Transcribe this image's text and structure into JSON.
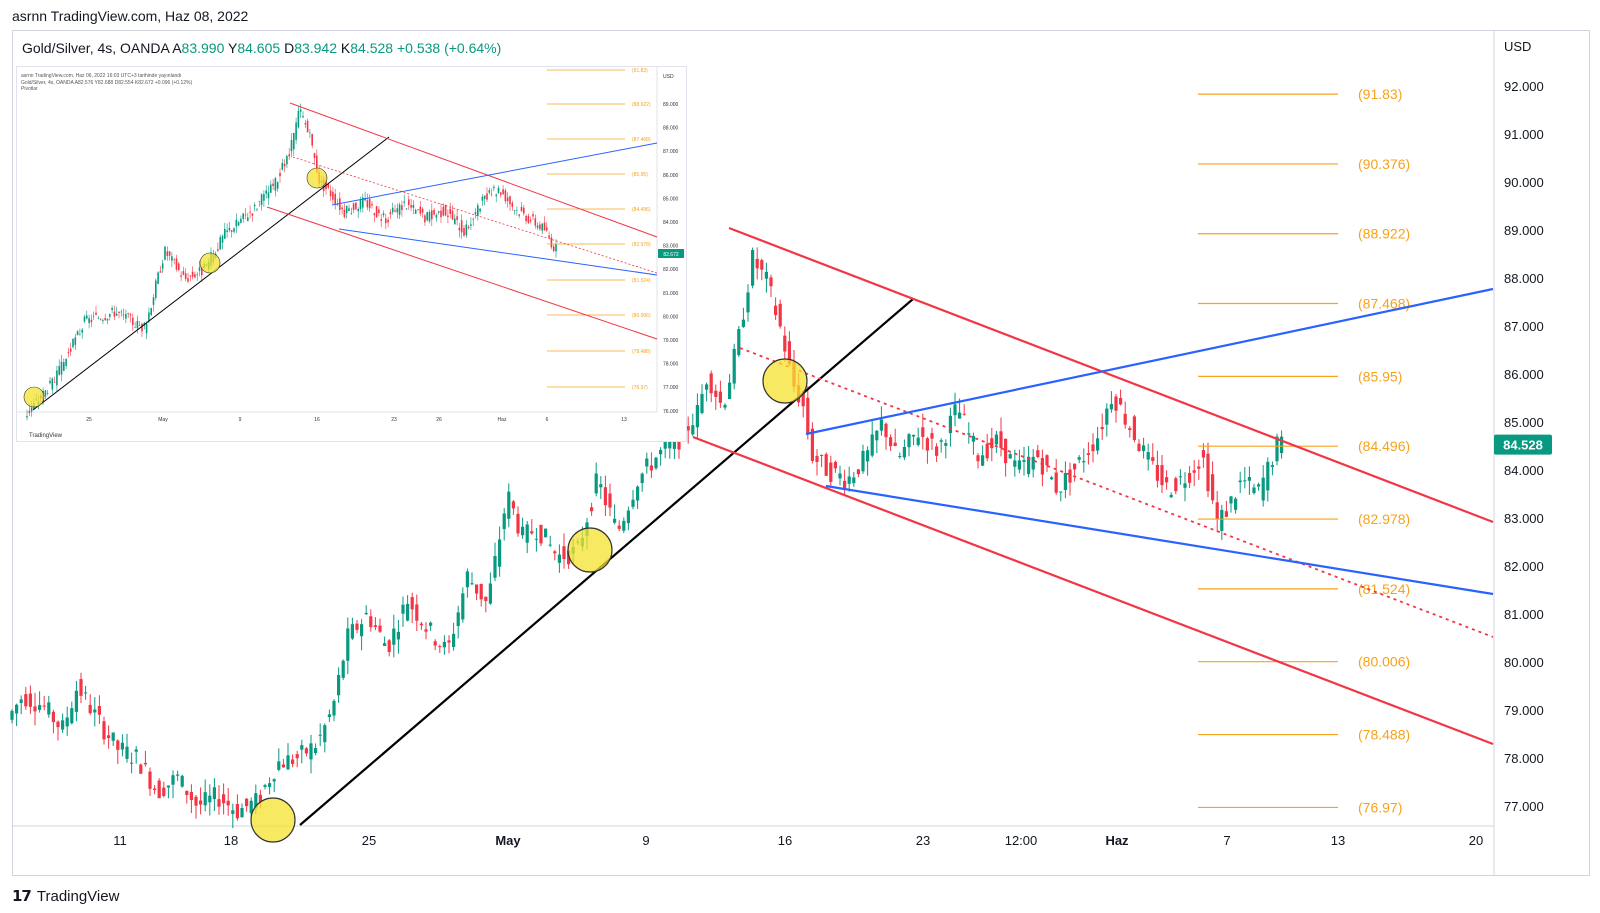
{
  "topline": "asrnn TradingView.com, Haz 08, 2022",
  "header": {
    "symbol": "Gold/Silver, 4s, OANDA",
    "o_label": "A",
    "o_val": "83.990",
    "h_label": "Y",
    "h_val": "84.605",
    "l_label": "D",
    "l_val": "83.942",
    "c_label": "K",
    "c_val": "84.528",
    "change": "+0.538 (+0.64%)"
  },
  "currency": "USD",
  "price_tag": "84.528",
  "footer": {
    "logo": "𝟭𝟳",
    "brand": "TradingView"
  },
  "colors": {
    "up": "#089981",
    "down": "#f23645",
    "fib": "#f7a21b",
    "channel": "#f23645",
    "wedge": "#2962ff",
    "trend": "#000000",
    "highlight": "#f5e12d",
    "price_tag": "#089981"
  },
  "chart_data": [
    {
      "type": "line",
      "title": "Gold/Silver, 4s, OANDA",
      "ylabel": "USD",
      "ylim": [
        76.5,
        92.8
      ],
      "y_ticks": [
        "92.000",
        "91.000",
        "90.000",
        "89.000",
        "88.000",
        "87.000",
        "86.000",
        "85.000",
        "84.000",
        "83.000",
        "82.000",
        "81.000",
        "80.000",
        "79.000",
        "78.000",
        "77.000"
      ],
      "x_ticks": [
        "11",
        "18",
        "25",
        "May",
        "9",
        "16",
        "23",
        "12:00",
        "Haz",
        "7",
        "13",
        "20"
      ],
      "fib_levels": [
        {
          "label": "(91.83)",
          "value": 91.83
        },
        {
          "label": "(90.376)",
          "value": 90.376
        },
        {
          "label": "(88.922)",
          "value": 88.922
        },
        {
          "label": "(87.468)",
          "value": 87.468
        },
        {
          "label": "(85.95)",
          "value": 85.95
        },
        {
          "label": "(84.496)",
          "value": 84.496
        },
        {
          "label": "(82.978)",
          "value": 82.978
        },
        {
          "label": "(81.524)",
          "value": 81.524
        },
        {
          "label": "(80.006)",
          "value": 80.006
        },
        {
          "label": "(78.488)",
          "value": 78.488
        },
        {
          "label": "(76.97)",
          "value": 76.97
        }
      ],
      "price_path": [
        [
          0,
          78.8
        ],
        [
          15,
          79.3
        ],
        [
          35,
          79.1
        ],
        [
          55,
          78.6
        ],
        [
          70,
          79.5
        ],
        [
          90,
          78.8
        ],
        [
          110,
          78.2
        ],
        [
          130,
          78.0
        ],
        [
          150,
          77.3
        ],
        [
          170,
          77.6
        ],
        [
          190,
          77.0
        ],
        [
          210,
          77.2
        ],
        [
          230,
          76.9
        ],
        [
          250,
          77.1
        ],
        [
          270,
          77.9
        ],
        [
          290,
          78.0
        ],
        [
          310,
          78.3
        ],
        [
          325,
          79.0
        ],
        [
          340,
          80.5
        ],
        [
          360,
          81.0
        ],
        [
          380,
          80.3
        ],
        [
          400,
          81.3
        ],
        [
          420,
          80.7
        ],
        [
          440,
          80.2
        ],
        [
          460,
          81.8
        ],
        [
          480,
          81.2
        ],
        [
          500,
          83.5
        ],
        [
          515,
          82.6
        ],
        [
          530,
          82.8
        ],
        [
          550,
          82.2
        ],
        [
          570,
          82.3
        ],
        [
          590,
          83.8
        ],
        [
          610,
          82.7
        ],
        [
          630,
          83.8
        ],
        [
          650,
          84.3
        ],
        [
          670,
          84.6
        ],
        [
          690,
          85.2
        ],
        [
          700,
          86.0
        ],
        [
          715,
          85.3
        ],
        [
          730,
          86.6
        ],
        [
          745,
          88.4
        ],
        [
          760,
          87.9
        ],
        [
          775,
          86.8
        ],
        [
          785,
          85.8
        ],
        [
          795,
          85.4
        ],
        [
          805,
          84.3
        ],
        [
          820,
          84.0
        ],
        [
          840,
          83.8
        ],
        [
          860,
          84.3
        ],
        [
          875,
          85.0
        ],
        [
          890,
          84.2
        ],
        [
          910,
          84.8
        ],
        [
          930,
          84.4
        ],
        [
          950,
          85.3
        ],
        [
          970,
          84.3
        ],
        [
          990,
          84.6
        ],
        [
          1010,
          84.0
        ],
        [
          1030,
          84.3
        ],
        [
          1050,
          83.6
        ],
        [
          1070,
          84.1
        ],
        [
          1090,
          84.7
        ],
        [
          1105,
          85.6
        ],
        [
          1120,
          85.0
        ],
        [
          1140,
          84.2
        ],
        [
          1160,
          83.6
        ],
        [
          1180,
          83.9
        ],
        [
          1195,
          84.3
        ],
        [
          1210,
          82.9
        ],
        [
          1220,
          83.2
        ],
        [
          1235,
          83.8
        ],
        [
          1250,
          83.5
        ],
        [
          1260,
          84.0
        ],
        [
          1270,
          84.53
        ]
      ]
    },
    {
      "type": "line",
      "title": "Gold/Silver, 4s, OANDA",
      "inset_header": "asrnn TradingView.com, Haz 06, 2022 16:03 UTC+3 tarihinde yayınlandı",
      "inset_legend": "Gold/Silver, 4s, OANDA  A82.576  Y82.688  D82.554  K82.672  +0.096 (+0.12%)",
      "inset_sub": "Pivotlar",
      "ylabel": "USD",
      "ylim": [
        75.9,
        90.5
      ],
      "y_ticks": [
        "89.000",
        "88.000",
        "87.000",
        "86.000",
        "85.000",
        "84.000",
        "83.000",
        "82.000",
        "81.000",
        "80.000",
        "79.000",
        "78.000",
        "77.000",
        "76.000"
      ],
      "x_ticks": [
        "25",
        "May",
        "9",
        "16",
        "23",
        "26",
        "Haz",
        "6",
        "13"
      ],
      "fib_labels": [
        "(91.83)",
        "(88.922)",
        "(87.468)",
        "(85.95)",
        "(84.496)",
        "(82.978)",
        "(81.524)",
        "(80.006)",
        "(78.488)",
        "(76.97)"
      ],
      "price_tag": "82.672",
      "footer": "TradingView"
    }
  ]
}
